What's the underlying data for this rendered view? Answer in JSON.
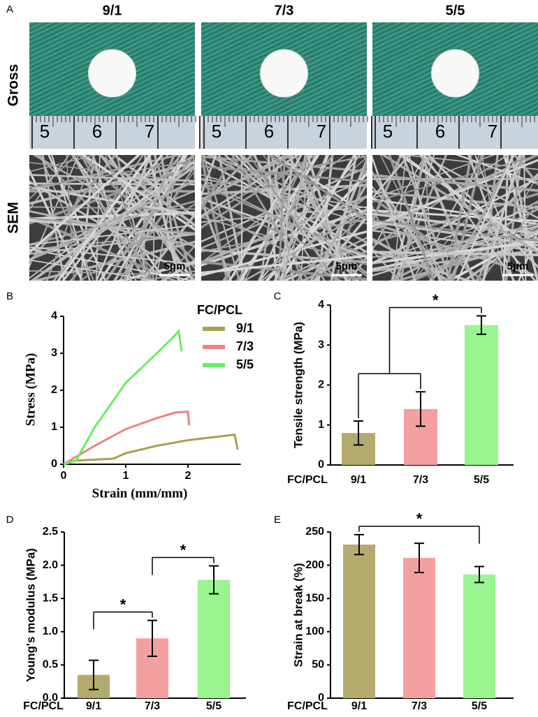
{
  "panel_a": {
    "label": "A",
    "columns": [
      "9/1",
      "7/3",
      "5/5"
    ],
    "rows": [
      "Gross",
      "SEM"
    ],
    "ruler_labels": [
      "5",
      "6",
      "7"
    ],
    "scale_bar": "5μm"
  },
  "chart_data": [
    {
      "type": "line",
      "panel": "B",
      "x_label": "Strain (mm/mm)",
      "y_label": "Stress (MPa)",
      "legend_title": "FC/PCL",
      "xlim": [
        0,
        3
      ],
      "ylim": [
        0,
        4
      ],
      "xticks": [
        0,
        1,
        2
      ],
      "yticks": [
        0,
        1,
        2,
        3,
        4
      ],
      "series": [
        {
          "name": "9/1",
          "color": "#aaa04e",
          "x": [
            0,
            0.2,
            0.8,
            1.0,
            1.5,
            2.0,
            2.5,
            2.75,
            2.8
          ],
          "values": [
            0,
            0.1,
            0.15,
            0.3,
            0.5,
            0.65,
            0.75,
            0.8,
            0.4
          ]
        },
        {
          "name": "7/3",
          "color": "#f08080",
          "x": [
            0,
            0.5,
            1.0,
            1.5,
            1.8,
            2.0,
            2.02
          ],
          "values": [
            0,
            0.5,
            0.95,
            1.25,
            1.4,
            1.42,
            1.05
          ]
        },
        {
          "name": "5/5",
          "color": "#66ee66",
          "x": [
            0,
            0.2,
            0.5,
            1.0,
            1.5,
            1.8,
            1.85,
            1.9
          ],
          "values": [
            0,
            0.1,
            1.0,
            2.2,
            3.0,
            3.5,
            3.6,
            3.05
          ]
        }
      ]
    },
    {
      "type": "bar",
      "panel": "C",
      "y_label": "Tensile strength (MPa)",
      "category_label": "FC/PCL",
      "categories": [
        "9/1",
        "7/3",
        "5/5"
      ],
      "colors": [
        "#b5aa6e",
        "#f4a0a0",
        "#99f58f"
      ],
      "values": [
        0.8,
        1.4,
        3.5
      ],
      "errors": [
        0.3,
        0.43,
        0.23
      ],
      "ylim": [
        0,
        4
      ],
      "yticks": [
        0,
        1,
        2,
        3,
        4
      ],
      "significance": [
        {
          "groups": [
            [
              0,
              1
            ],
            [
              2
            ]
          ],
          "label": "*"
        }
      ]
    },
    {
      "type": "bar",
      "panel": "D",
      "y_label": "Young's modulus (MPa)",
      "category_label": "FC/PCL",
      "categories": [
        "9/1",
        "7/3",
        "5/5"
      ],
      "colors": [
        "#b5aa6e",
        "#f4a0a0",
        "#99f58f"
      ],
      "values": [
        0.35,
        0.9,
        1.78
      ],
      "errors": [
        0.22,
        0.27,
        0.21
      ],
      "ylim": [
        0,
        2.5
      ],
      "yticks": [
        {
          "value": 0,
          "label": "0.0"
        },
        0.5,
        {
          "value": 1,
          "label": "1.0"
        },
        1.5,
        {
          "value": 2,
          "label": "2.0"
        },
        2.5
      ],
      "significance": [
        {
          "groups": [
            [
              0
            ],
            [
              1
            ]
          ],
          "label": "*"
        },
        {
          "groups": [
            [
              1
            ],
            [
              2
            ]
          ],
          "label": "*"
        }
      ]
    },
    {
      "type": "bar",
      "panel": "E",
      "y_label": "Strain at break (%)",
      "category_label": "FC/PCL",
      "categories": [
        "9/1",
        "7/3",
        "5/5"
      ],
      "colors": [
        "#b5aa6e",
        "#f4a0a0",
        "#99f58f"
      ],
      "values": [
        231,
        211,
        186
      ],
      "errors": [
        15,
        22,
        12
      ],
      "ylim": [
        0,
        250
      ],
      "yticks": [
        0,
        50,
        100,
        150,
        200,
        250
      ],
      "significance": [
        {
          "groups": [
            [
              0
            ],
            [
              2
            ]
          ],
          "label": "*"
        }
      ]
    }
  ]
}
